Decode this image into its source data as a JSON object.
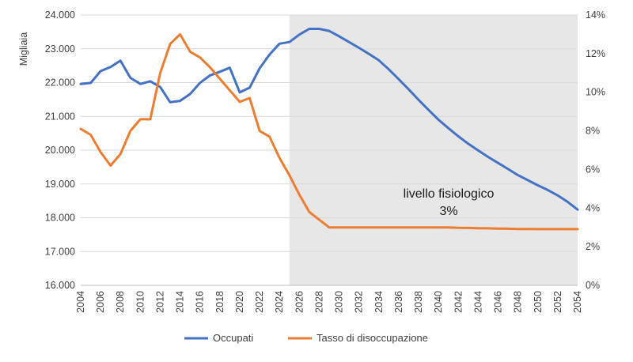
{
  "chart_data": {
    "type": "line",
    "ylabel_left": "Migliaia",
    "ylabel_right": "",
    "y_left": {
      "min": 16000,
      "max": 24000,
      "step": 1000,
      "tick_labels": [
        "16.000",
        "17.000",
        "18.000",
        "19.000",
        "20.000",
        "21.000",
        "22.000",
        "23.000",
        "24.000"
      ]
    },
    "y_right": {
      "min": 0,
      "max": 14,
      "step": 2,
      "tick_labels": [
        "0%",
        "2%",
        "4%",
        "6%",
        "8%",
        "10%",
        "12%",
        "14%"
      ]
    },
    "x_tick_labels": [
      "2004",
      "2006",
      "2008",
      "2010",
      "2012",
      "2014",
      "2016",
      "2018",
      "2020",
      "2022",
      "2024",
      "2026",
      "2028",
      "2030",
      "2032",
      "2034",
      "2036",
      "2038",
      "2040",
      "2042",
      "2044",
      "2046",
      "2048",
      "2050",
      "2052",
      "2054"
    ],
    "shaded_region": {
      "from": 2025,
      "to": 2054
    },
    "annotation": {
      "line1": "livello fisiologico",
      "line2": "3%"
    },
    "legend_position": "bottom",
    "grid": true,
    "x": [
      2004,
      2005,
      2006,
      2007,
      2008,
      2009,
      2010,
      2011,
      2012,
      2013,
      2014,
      2015,
      2016,
      2017,
      2018,
      2019,
      2020,
      2021,
      2022,
      2023,
      2024,
      2025,
      2026,
      2027,
      2028,
      2029,
      2030,
      2031,
      2032,
      2033,
      2034,
      2035,
      2036,
      2037,
      2038,
      2039,
      2040,
      2041,
      2042,
      2043,
      2044,
      2045,
      2046,
      2047,
      2048,
      2049,
      2050,
      2051,
      2052,
      2053,
      2054
    ],
    "series": [
      {
        "name": "Occupati",
        "axis": "left",
        "color": "#4472C4",
        "values": [
          21960,
          21990,
          22340,
          22460,
          22650,
          22140,
          21960,
          22040,
          21870,
          21420,
          21460,
          21660,
          21990,
          22210,
          22320,
          22440,
          21710,
          21850,
          22420,
          22830,
          23150,
          23200,
          23420,
          23590,
          23590,
          23530,
          23370,
          23200,
          23030,
          22850,
          22660,
          22390,
          22100,
          21800,
          21490,
          21190,
          20900,
          20650,
          20410,
          20190,
          19990,
          19800,
          19620,
          19440,
          19260,
          19110,
          18960,
          18820,
          18660,
          18470,
          18240
        ]
      },
      {
        "name": "Tasso di disoccupazione",
        "axis": "right",
        "color": "#ED7D31",
        "values": [
          8.1,
          7.8,
          6.9,
          6.2,
          6.8,
          8.0,
          8.6,
          8.6,
          11.0,
          12.5,
          13.0,
          12.1,
          11.8,
          11.3,
          10.7,
          10.1,
          9.5,
          9.7,
          8.0,
          7.7,
          6.6,
          5.7,
          4.7,
          3.8,
          3.4,
          3.0,
          3.0,
          3.0,
          3.0,
          3.0,
          3.0,
          3.0,
          3.0,
          3.0,
          3.0,
          3.0,
          3.0,
          3.0,
          2.98,
          2.97,
          2.96,
          2.95,
          2.94,
          2.93,
          2.92,
          2.92,
          2.91,
          2.91,
          2.91,
          2.91,
          2.91
        ]
      }
    ]
  }
}
